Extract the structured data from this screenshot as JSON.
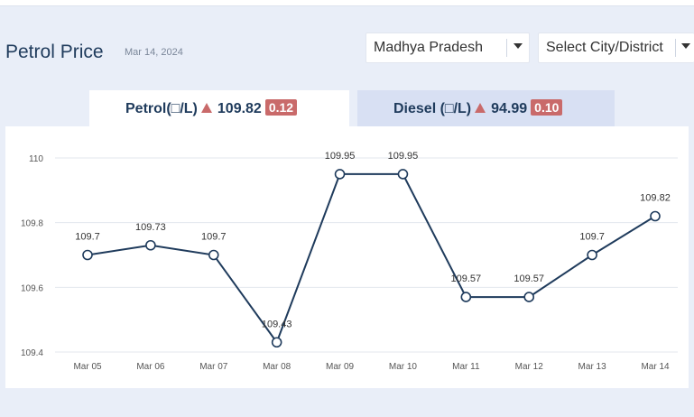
{
  "header": {
    "title": "Petrol Price",
    "date": "Mar 14, 2024",
    "state_select": "Madhya Pradesh",
    "city_select": "Select City/District"
  },
  "tabs": [
    {
      "label": "Petrol(□/L)",
      "price": "109.82",
      "change": "0.12"
    },
    {
      "label": "Diesel (□/L)",
      "price": "94.99",
      "change": "0.10"
    }
  ],
  "colors": {
    "line": "#1f3b5c",
    "change_badge": "#c96a6a",
    "tab_inactive": "#d8e0f3",
    "page_bg": "#e9eef8"
  },
  "chart_data": {
    "type": "line",
    "categories": [
      "Mar 05",
      "Mar 06",
      "Mar 07",
      "Mar 08",
      "Mar 09",
      "Mar 10",
      "Mar 11",
      "Mar 12",
      "Mar 13",
      "Mar 14"
    ],
    "values": [
      109.7,
      109.73,
      109.7,
      109.43,
      109.95,
      109.95,
      109.57,
      109.57,
      109.7,
      109.82
    ],
    "data_labels": [
      "109.7",
      "109.73",
      "109.7",
      "109.43",
      "109.95",
      "109.95",
      "109.57",
      "109.57",
      "109.7",
      "109.82"
    ],
    "yticks": [
      "110",
      "109.8",
      "109.6",
      "109.4"
    ],
    "ylim": [
      109.4,
      110
    ],
    "grid": true,
    "legend": "none"
  }
}
